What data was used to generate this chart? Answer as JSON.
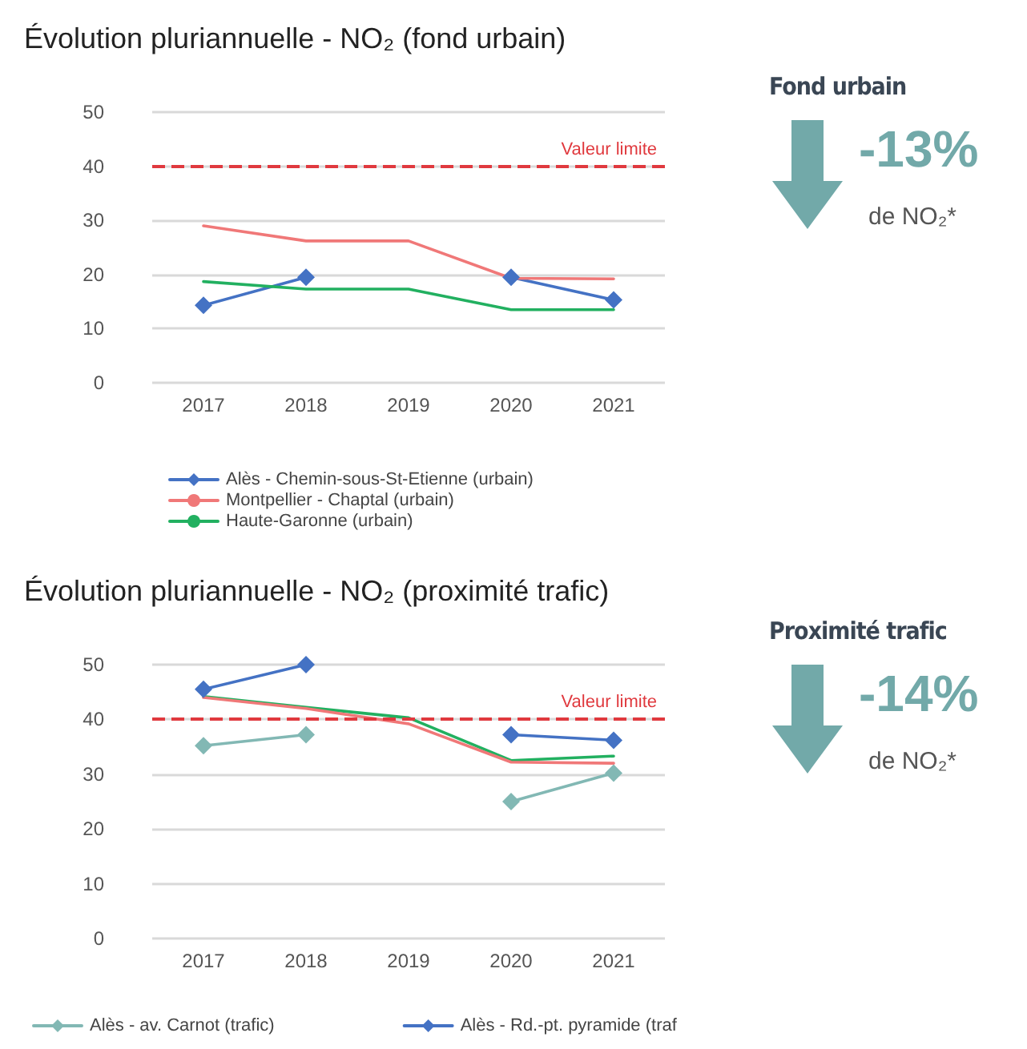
{
  "chart_data": [
    {
      "type": "line",
      "title": "Évolution pluriannuelle - NO₂ (fond urbain)",
      "categories": [
        "2017",
        "2018",
        "2019",
        "2020",
        "2021"
      ],
      "ylim": [
        0,
        50
      ],
      "yticks": [
        0,
        10,
        20,
        30,
        40,
        50
      ],
      "grid": "y",
      "legend": "bottom",
      "line_style": "solid",
      "series": [
        {
          "name": "Alès - Chemin-sous-St-Etienne (urbain)",
          "color": "#4472c4",
          "marker": "diamond",
          "values": [
            14.3,
            19.5,
            null,
            19.5,
            15.3
          ]
        },
        {
          "name": "Montpellier - Chaptal (urbain)",
          "color": "#f07878",
          "marker": "none",
          "values": [
            29,
            26.2,
            26.2,
            19.3,
            19.2
          ]
        },
        {
          "name": "Haute-Garonne (urbain)",
          "color": "#22b060",
          "marker": "none",
          "values": [
            18.7,
            17.3,
            17.3,
            13.5,
            13.5
          ]
        }
      ],
      "ref_lines": [
        {
          "axis": "y",
          "value": 40,
          "label": "Valeur limite",
          "color": "#e0393e",
          "line_style": "dashed"
        }
      ]
    },
    {
      "type": "other",
      "title": "Fond urbain",
      "annotations": [
        "-13%",
        "de NO₂*"
      ]
    },
    {
      "type": "line",
      "title": "Évolution pluriannuelle - NO₂ (proximité trafic)",
      "categories": [
        "2017",
        "2018",
        "2019",
        "2020",
        "2021"
      ],
      "ylim": [
        0,
        50
      ],
      "yticks": [
        0,
        10,
        20,
        30,
        40,
        50
      ],
      "grid": "y",
      "legend": "bottom",
      "line_style": "solid",
      "series": [
        {
          "name": "Alès - av. Carnot (trafic)",
          "color": "#82b8b4",
          "marker": "diamond",
          "values": [
            35.2,
            37.2,
            null,
            25,
            30.2
          ]
        },
        {
          "name": "Alès - Rd.-pt. pyramide (traf",
          "color": "#4472c4",
          "marker": "diamond",
          "values": [
            45.5,
            50,
            null,
            37.2,
            36.2
          ]
        },
        {
          "color": "#22b060",
          "marker": "none",
          "values": [
            44.2,
            42.2,
            40.3,
            32.5,
            33.3
          ]
        },
        {
          "color": "#f07878",
          "marker": "none",
          "values": [
            44,
            42,
            39.2,
            32.2,
            32
          ]
        }
      ],
      "ref_lines": [
        {
          "axis": "y",
          "value": 40,
          "label": "Valeur limite",
          "color": "#e0393e",
          "line_style": "dashed"
        }
      ]
    },
    {
      "type": "other",
      "title": "Proximité trafic",
      "annotations": [
        "-14%",
        "de NO₂*"
      ]
    }
  ]
}
